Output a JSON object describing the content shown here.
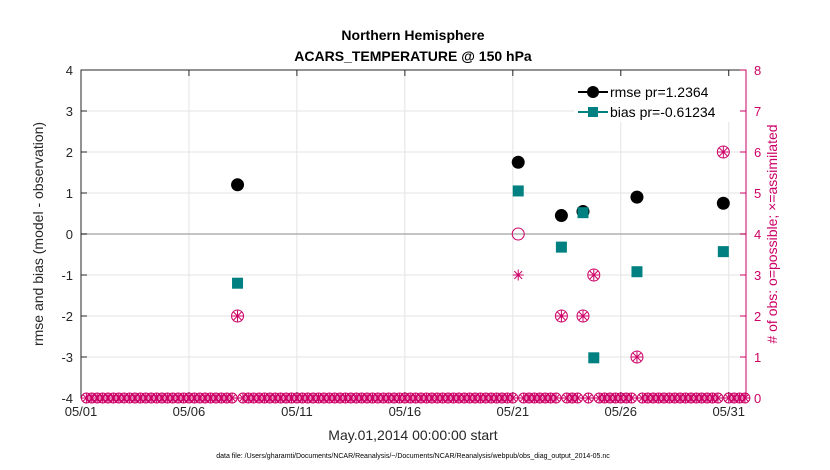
{
  "chart_data": {
    "type": "scatter",
    "title": "Northern Hemisphere",
    "subtitle": "ACARS_TEMPERATURE @ 150 hPa",
    "xlabel": "May.01,2014 00:00:00 start",
    "ylabel": "rmse and bias (model - observation)",
    "y2label": "# of obs: o=possible; ×=assimilated",
    "footnote": "data file: /Users/gharamti/Documents/NCAR/Reanalysis/~/Documents/NCAR/Reanalysis/webpub/obs_diag_output_2014-05.nc",
    "xlim": [
      1,
      31.8
    ],
    "ylim": [
      -4,
      4
    ],
    "y2lim": [
      0,
      8
    ],
    "x_ticks": [
      1,
      6,
      11,
      16,
      21,
      26,
      31
    ],
    "x_tick_labels": [
      "05/01",
      "05/06",
      "05/11",
      "05/16",
      "05/21",
      "05/26",
      "05/31"
    ],
    "y_ticks": [
      -4,
      -3,
      -2,
      -1,
      0,
      1,
      2,
      3,
      4
    ],
    "y_tick_labels": [
      "-4",
      "-3",
      "-2",
      "-1",
      "0",
      "1",
      "2",
      "3",
      "4"
    ],
    "y2_ticks": [
      0,
      1,
      2,
      3,
      4,
      5,
      6,
      7,
      8
    ],
    "y2_tick_labels": [
      "0",
      "1",
      "2",
      "3",
      "4",
      "5",
      "6",
      "7",
      "8"
    ],
    "grid": true,
    "legend_position": "top-right",
    "series": [
      {
        "name": "rmse pr=1.2364",
        "color": "#000000",
        "axis": "left",
        "marker": "circle",
        "x": [
          8.25,
          21.25,
          23.25,
          24.25,
          26.75,
          30.75
        ],
        "y": [
          1.2,
          1.75,
          0.45,
          0.55,
          0.9,
          0.75
        ]
      },
      {
        "name": "bias pr=-0.61234",
        "color": "#008080",
        "axis": "left",
        "marker": "square",
        "x": [
          8.25,
          21.25,
          23.25,
          24.25,
          24.75,
          26.75,
          30.75
        ],
        "y": [
          -1.2,
          1.05,
          -0.32,
          0.52,
          -3.02,
          -0.92,
          -0.43
        ]
      },
      {
        "name": "obs possible",
        "color": "#cc0066",
        "axis": "right",
        "marker": "open-circle",
        "x": [
          8.25,
          21.25,
          23.25,
          24.25,
          24.75,
          26.75,
          30.75
        ],
        "y": [
          2,
          4,
          2,
          2,
          3,
          1,
          6
        ]
      },
      {
        "name": "obs assimilated",
        "color": "#cc0066",
        "axis": "right",
        "marker": "asterisk",
        "x": [
          8.25,
          21.25,
          23.25,
          24.25,
          24.75,
          26.75,
          30.75
        ],
        "y": [
          2,
          3,
          2,
          2,
          3,
          1,
          6
        ]
      }
    ]
  }
}
